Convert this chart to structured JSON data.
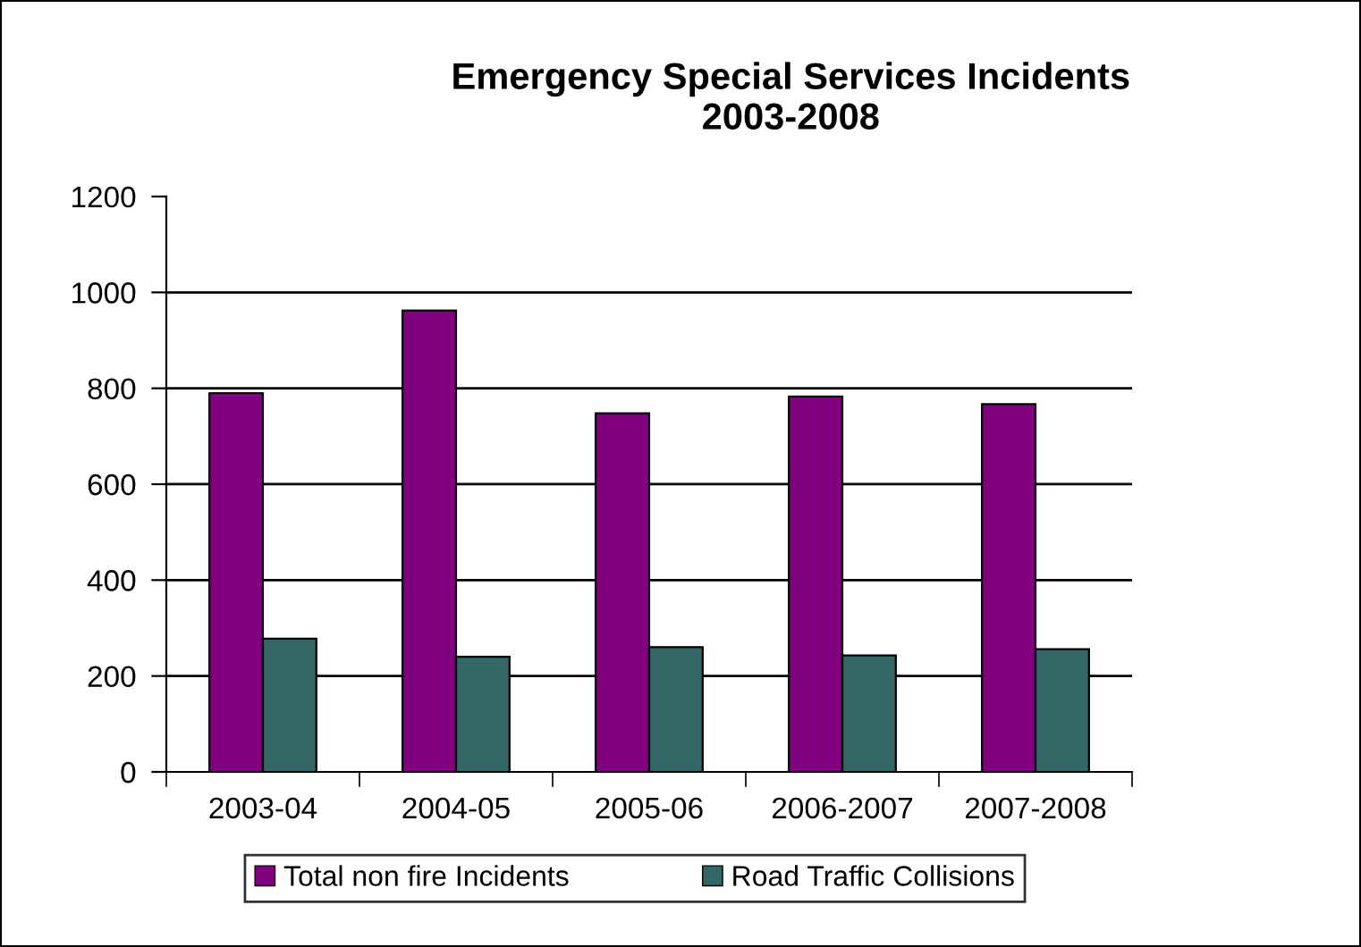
{
  "chart_data": {
    "type": "bar",
    "title": "Emergency Special Services Incidents\n2003-2008",
    "categories": [
      "2003-04",
      "2004-05",
      "2005-06",
      "2006-2007",
      "2007-2008"
    ],
    "series": [
      {
        "name": "Total non fire Incidents",
        "color": "#800080",
        "values": [
          790,
          962,
          748,
          783,
          767
        ]
      },
      {
        "name": "Road Traffic Collisions",
        "color": "#336666",
        "values": [
          278,
          240,
          260,
          243,
          256
        ]
      }
    ],
    "ylim": [
      0,
      1200
    ],
    "yticks": [
      0,
      200,
      400,
      600,
      800,
      1000,
      1200
    ],
    "grid": "y",
    "legend": "bottom"
  }
}
